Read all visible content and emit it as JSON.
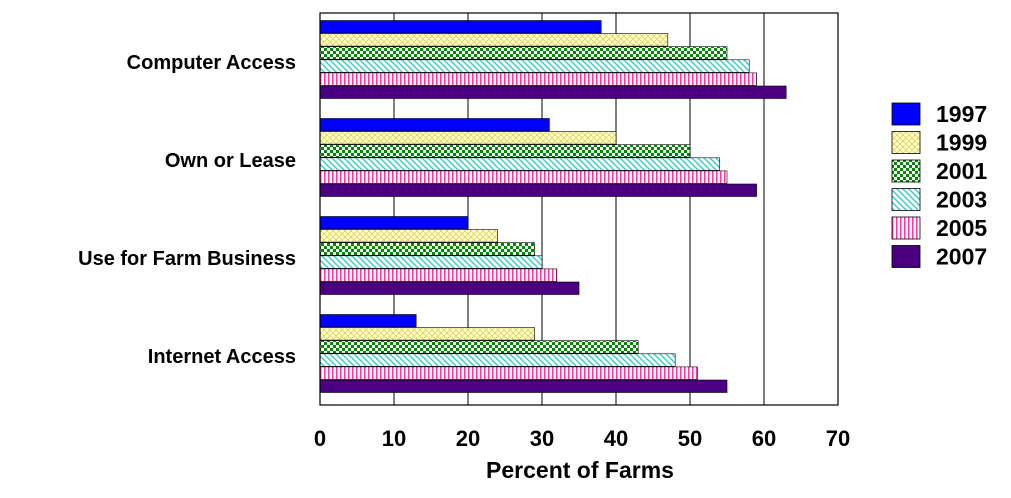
{
  "chart_data": {
    "type": "bar",
    "orientation": "horizontal",
    "title": "",
    "xlabel": "Percent of Farms",
    "ylabel": "",
    "xlim": [
      0,
      70
    ],
    "x_ticks": [
      0,
      10,
      20,
      30,
      40,
      50,
      60,
      70
    ],
    "grid": "vertical lines at each tick",
    "legend_position": "right",
    "categories": [
      "Computer Access",
      "Own or Lease",
      "Use for Farm Business",
      "Internet Access"
    ],
    "series": [
      {
        "name": "1997",
        "color": "#0000ff",
        "pattern": "solid",
        "values": [
          38,
          31,
          20,
          13
        ]
      },
      {
        "name": "1999",
        "color": "#ffff99",
        "pattern": "crosshatch",
        "values": [
          47,
          40,
          24,
          29
        ]
      },
      {
        "name": "2001",
        "color": "#00aa00",
        "pattern": "checker",
        "values": [
          55,
          50,
          29,
          43
        ]
      },
      {
        "name": "2003",
        "color": "#66ffff",
        "pattern": "diagonal",
        "values": [
          58,
          54,
          30,
          48
        ]
      },
      {
        "name": "2005",
        "color": "#ff66cc",
        "pattern": "vertical",
        "values": [
          59,
          55,
          32,
          51
        ]
      },
      {
        "name": "2007",
        "color": "#4b0082",
        "pattern": "solid",
        "values": [
          63,
          59,
          35,
          55
        ]
      }
    ]
  }
}
